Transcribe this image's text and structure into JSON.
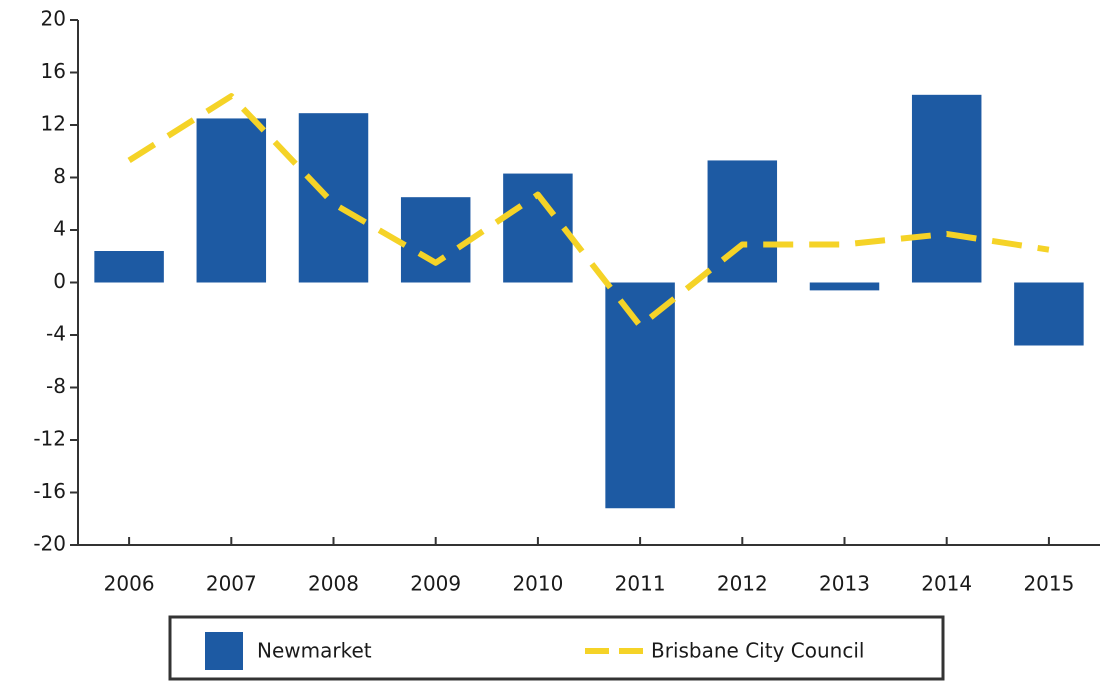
{
  "chart_data": {
    "type": "bar",
    "categories": [
      "2006",
      "2007",
      "2008",
      "2009",
      "2010",
      "2011",
      "2012",
      "2013",
      "2014",
      "2015"
    ],
    "series": [
      {
        "name": "Newmarket",
        "type": "bar",
        "color": "#1d5aa3",
        "values": [
          2.4,
          12.5,
          12.9,
          6.5,
          8.3,
          -17.2,
          9.3,
          -0.6,
          14.3,
          -4.8
        ]
      },
      {
        "name": "Brisbane City Council",
        "type": "line",
        "color": "#f5d327",
        "values": [
          9.3,
          14.2,
          6.0,
          1.5,
          6.7,
          -3.3,
          2.9,
          2.9,
          3.7,
          2.5
        ]
      }
    ],
    "ylim": [
      -20,
      20
    ],
    "yticks": [
      -20,
      -16,
      -12,
      -8,
      -4,
      0,
      4,
      8,
      12,
      16,
      20
    ],
    "grid": false
  }
}
